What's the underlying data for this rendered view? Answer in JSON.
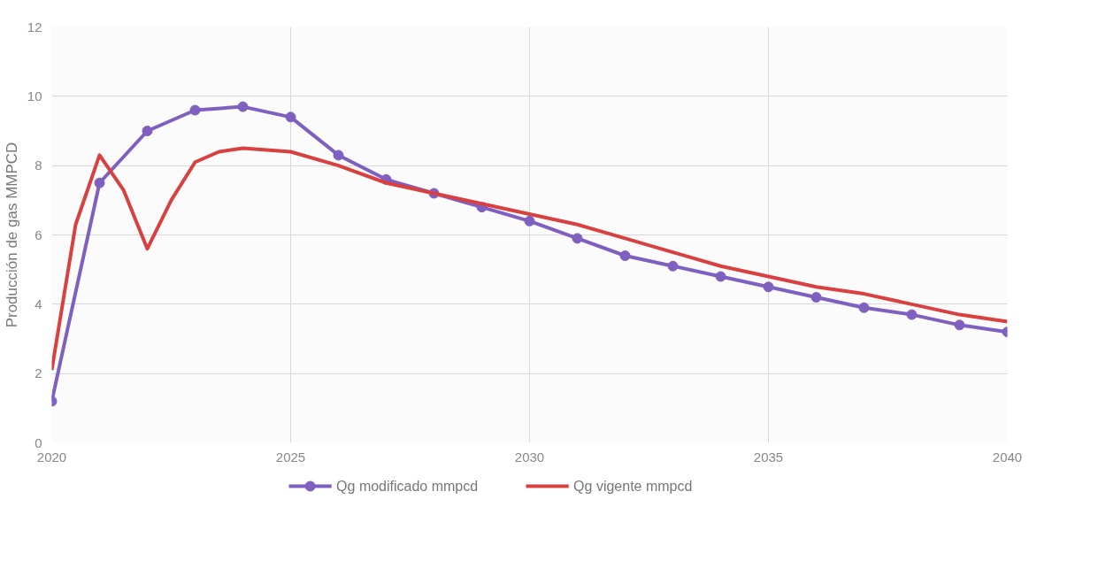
{
  "chart_data": {
    "type": "line",
    "ylabel": "Producción de gas MMPCD",
    "xlim": [
      2020,
      2040
    ],
    "xticks": [
      2020,
      2025,
      2030,
      2035,
      2040
    ],
    "ylim": [
      0,
      12
    ],
    "yticks": [
      0,
      2,
      4,
      6,
      8,
      10,
      12
    ],
    "grid": true,
    "legend": "bottom",
    "series": [
      {
        "name": "Qg modificado mmpcd",
        "color": "#7f5fbf",
        "marker": "circle",
        "x": [
          2020,
          2021,
          2022,
          2023,
          2024,
          2025,
          2026,
          2027,
          2028,
          2029,
          2030,
          2031,
          2032,
          2033,
          2034,
          2035,
          2036,
          2037,
          2038,
          2039,
          2040
        ],
        "values": [
          1.2,
          7.5,
          9.0,
          9.6,
          9.7,
          9.4,
          8.3,
          7.6,
          7.2,
          6.8,
          6.4,
          5.9,
          5.4,
          5.1,
          4.8,
          4.5,
          4.2,
          3.9,
          3.7,
          3.4,
          3.2
        ]
      },
      {
        "name": "Qg vigente mmpcd",
        "color": "#d94040",
        "marker": "none",
        "x": [
          2020,
          2020.5,
          2021,
          2021.5,
          2022,
          2022.5,
          2023,
          2023.5,
          2024,
          2025,
          2026,
          2027,
          2028,
          2029,
          2030,
          2031,
          2032,
          2033,
          2034,
          2035,
          2036,
          2037,
          2038,
          2039,
          2040
        ],
        "values": [
          2.1,
          6.3,
          8.3,
          7.3,
          5.6,
          7.0,
          8.1,
          8.4,
          8.5,
          8.4,
          8.0,
          7.5,
          7.2,
          6.9,
          6.6,
          6.3,
          5.9,
          5.5,
          5.1,
          4.8,
          4.5,
          4.3,
          4.0,
          3.7,
          3.5
        ]
      }
    ]
  }
}
